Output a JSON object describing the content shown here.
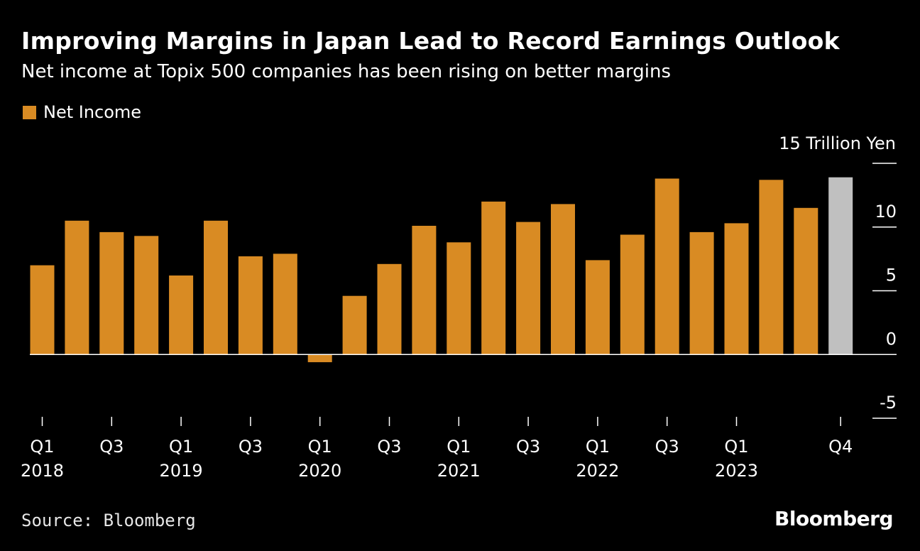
{
  "header": {
    "title": "Improving Margins in Japan Lead to Record Earnings Outlook",
    "subtitle": "Net income at Topix 500 companies has been rising on better margins"
  },
  "legend": {
    "label": "Net Income",
    "color": "#d98b23"
  },
  "footer": {
    "source": "Source: Bloomberg",
    "brand": "Bloomberg"
  },
  "chart_data": {
    "type": "bar",
    "unit_label": "15 Trillion Yen",
    "categories": [
      "Q1 2018",
      "Q2 2018",
      "Q3 2018",
      "Q4 2018",
      "Q1 2019",
      "Q2 2019",
      "Q3 2019",
      "Q4 2019",
      "Q1 2020",
      "Q2 2020",
      "Q3 2020",
      "Q4 2020",
      "Q1 2021",
      "Q2 2021",
      "Q3 2021",
      "Q4 2021",
      "Q1 2022",
      "Q2 2022",
      "Q3 2022",
      "Q4 2022",
      "Q1 2023",
      "Q2 2023",
      "Q3 2023",
      "Q4 2023"
    ],
    "series": [
      {
        "name": "Net Income",
        "values": [
          7.0,
          10.5,
          9.6,
          9.3,
          6.2,
          10.5,
          7.7,
          7.9,
          -0.6,
          4.6,
          7.1,
          10.1,
          8.8,
          12.0,
          10.4,
          11.8,
          7.4,
          9.4,
          13.8,
          9.6,
          10.3,
          13.7,
          11.5,
          13.9
        ],
        "color": "#d98b23",
        "highlight": {
          "index": 23,
          "color": "#c0c0c0"
        }
      }
    ],
    "x_ticks": [
      {
        "index": 0,
        "quarter": "Q1",
        "year": "2018"
      },
      {
        "index": 2,
        "quarter": "Q3",
        "year": ""
      },
      {
        "index": 4,
        "quarter": "Q1",
        "year": "2019"
      },
      {
        "index": 6,
        "quarter": "Q3",
        "year": ""
      },
      {
        "index": 8,
        "quarter": "Q1",
        "year": "2020"
      },
      {
        "index": 10,
        "quarter": "Q3",
        "year": ""
      },
      {
        "index": 12,
        "quarter": "Q1",
        "year": "2021"
      },
      {
        "index": 14,
        "quarter": "Q3",
        "year": ""
      },
      {
        "index": 16,
        "quarter": "Q1",
        "year": "2022"
      },
      {
        "index": 18,
        "quarter": "Q3",
        "year": ""
      },
      {
        "index": 20,
        "quarter": "Q1",
        "year": "2023"
      },
      {
        "index": 23,
        "quarter": "Q4",
        "year": ""
      }
    ],
    "y_ticks": [
      15,
      10,
      5,
      0,
      -5
    ],
    "y_tick_labels": [
      "",
      "10",
      "5",
      "0",
      "-5"
    ],
    "ylim": [
      -5,
      15
    ],
    "grid": false,
    "legend_position": "top-left",
    "axis_color": "#ffffff"
  }
}
